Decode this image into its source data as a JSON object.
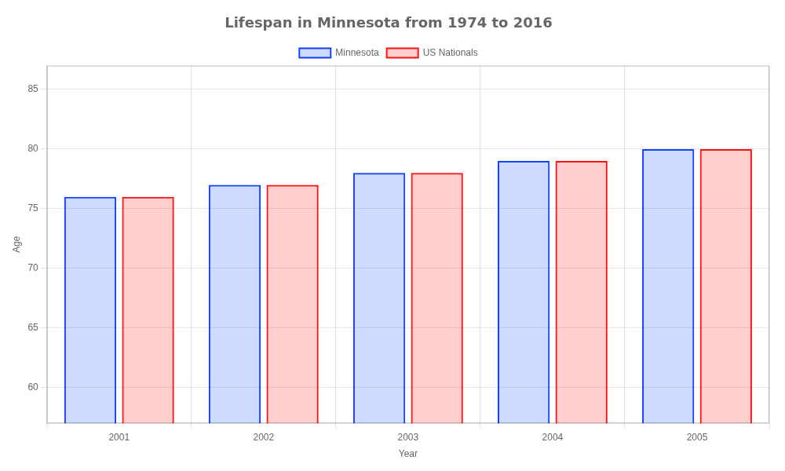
{
  "chart_data": {
    "type": "bar",
    "title": "Lifespan in Minnesota from 1974 to 2016",
    "x_label": "Year",
    "y_label": "Age",
    "categories": [
      "2001",
      "2002",
      "2003",
      "2004",
      "2005"
    ],
    "series": [
      {
        "name": "Minnesota",
        "color": "#1144ff",
        "values": [
          76,
          77,
          78,
          79,
          80
        ]
      },
      {
        "name": "US Nationals",
        "color": "#ff1111",
        "values": [
          76,
          77,
          78,
          79,
          80
        ]
      }
    ],
    "ylim": [
      57,
      87
    ],
    "yticks": [
      60,
      65,
      70,
      75,
      80,
      85
    ],
    "grid": true,
    "legend": "top"
  }
}
